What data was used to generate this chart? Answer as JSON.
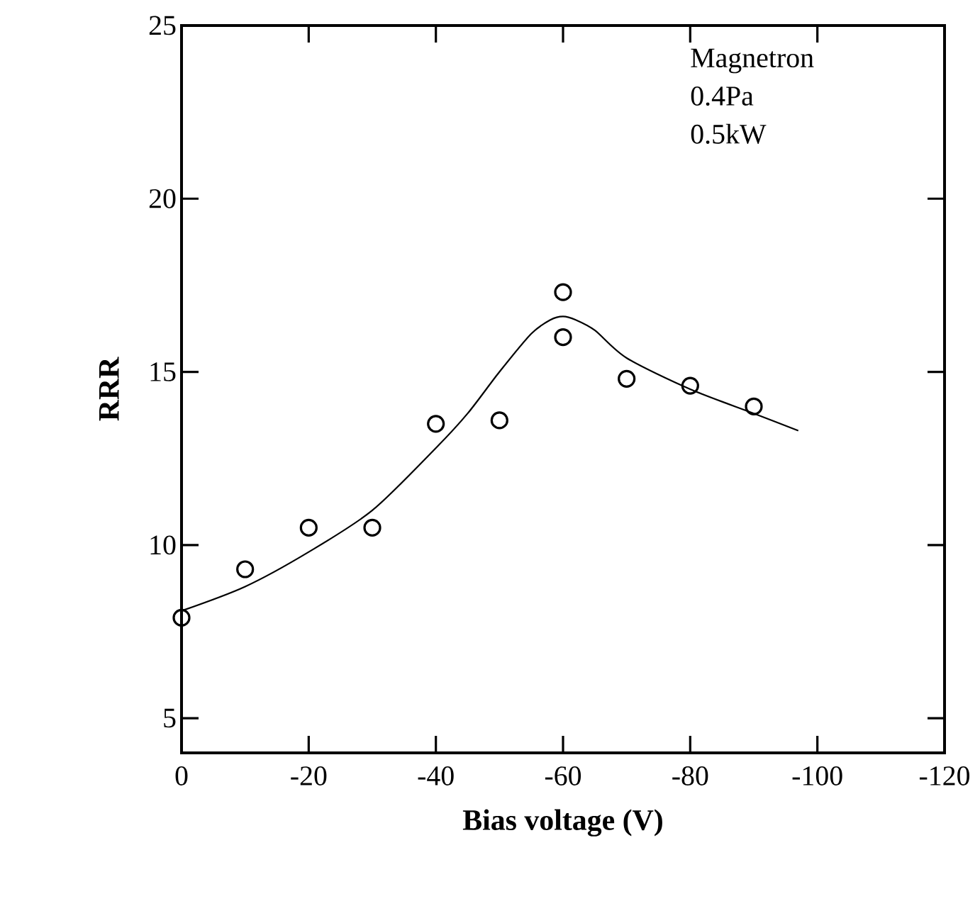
{
  "chart_data": {
    "type": "scatter",
    "xlabel": "Bias voltage (V)",
    "ylabel": "RRR",
    "xlim": [
      0,
      -120
    ],
    "ylim": [
      4,
      25
    ],
    "xticks": [
      0,
      -20,
      -40,
      -60,
      -80,
      -100,
      -120
    ],
    "yticks": [
      5,
      10,
      15,
      20,
      25
    ],
    "annotations": [
      "Magnetron",
      "0.4Pa",
      "0.5kW"
    ],
    "series": [
      {
        "marker": "circle",
        "color": "#000000",
        "x": [
          0,
          -10,
          -20,
          -30,
          -40,
          -50,
          -60,
          -60,
          -70,
          -80,
          -90
        ],
        "values": [
          7.9,
          9.3,
          10.5,
          10.5,
          13.5,
          13.6,
          17.3,
          16.0,
          14.8,
          14.6,
          14.0
        ]
      },
      {
        "type": "line",
        "color": "#000000",
        "line_style": "solid",
        "x": [
          0,
          -10,
          -20,
          -30,
          -40,
          -45,
          -50,
          -55,
          -58,
          -60,
          -62,
          -65,
          -70,
          -80,
          -90,
          -97
        ],
        "values": [
          8.1,
          8.8,
          9.8,
          11.0,
          12.8,
          13.8,
          15.0,
          16.1,
          16.5,
          16.6,
          16.5,
          16.2,
          15.4,
          14.5,
          13.8,
          13.3
        ]
      }
    ]
  }
}
